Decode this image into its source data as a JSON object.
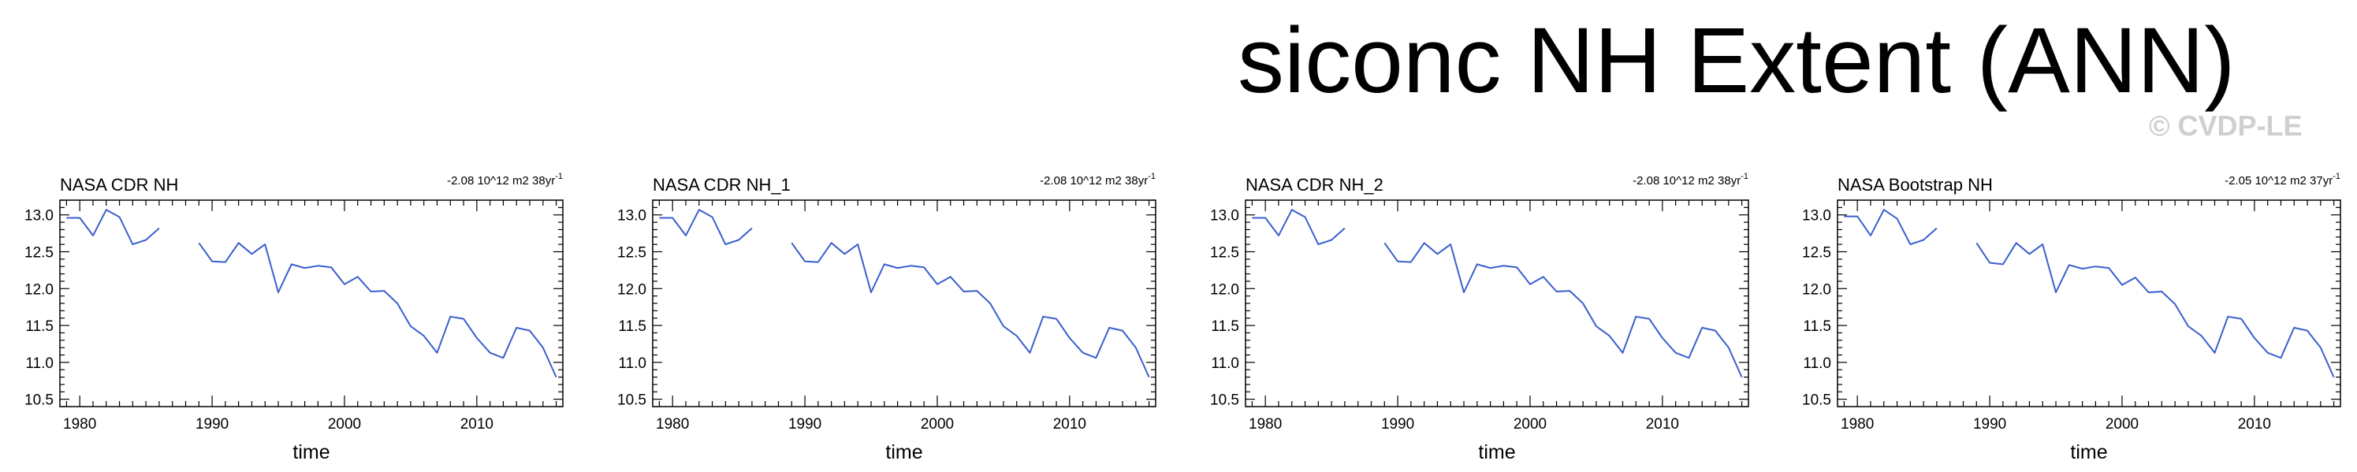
{
  "main_title": "siconc NH Extent (ANN)",
  "watermark": "© CVDP-LE",
  "chart_data": [
    {
      "type": "line",
      "title": "NASA CDR NH",
      "trend_label": "-2.08 10^12 m2 38yr",
      "trend_superscript": "-1",
      "xlabel": "time",
      "ylabel": "",
      "xlim": [
        1978.5,
        2016.5
      ],
      "ylim": [
        10.4,
        13.2
      ],
      "xticks": [
        1980,
        1990,
        2000,
        2010
      ],
      "yticks": [
        "13.0",
        "12.5",
        "12.0",
        "11.5",
        "11.0",
        "10.5"
      ],
      "line_color": "#3a5fcd",
      "x": [
        1979,
        1980,
        1981,
        1982,
        1983,
        1984,
        1985,
        1986,
        1987,
        1988,
        1989,
        1990,
        1991,
        1992,
        1993,
        1994,
        1995,
        1996,
        1997,
        1998,
        1999,
        2000,
        2001,
        2002,
        2003,
        2004,
        2005,
        2006,
        2007,
        2008,
        2009,
        2010,
        2011,
        2012,
        2013,
        2014,
        2015,
        2016
      ],
      "y": [
        12.96,
        12.96,
        12.72,
        13.07,
        12.97,
        12.6,
        12.66,
        12.82,
        null,
        null,
        12.62,
        12.37,
        12.36,
        12.62,
        12.47,
        12.6,
        11.95,
        12.33,
        12.28,
        12.31,
        12.29,
        12.06,
        12.16,
        11.96,
        11.97,
        11.8,
        11.49,
        11.36,
        11.13,
        11.62,
        11.59,
        11.33,
        11.13,
        11.06,
        11.47,
        11.43,
        11.2,
        10.8
      ]
    },
    {
      "type": "line",
      "title": "NASA CDR NH_1",
      "trend_label": "-2.08 10^12 m2 38yr",
      "trend_superscript": "-1",
      "xlabel": "time",
      "ylabel": "",
      "xlim": [
        1978.5,
        2016.5
      ],
      "ylim": [
        10.4,
        13.2
      ],
      "xticks": [
        1980,
        1990,
        2000,
        2010
      ],
      "yticks": [
        "13.0",
        "12.5",
        "12.0",
        "11.5",
        "11.0",
        "10.5"
      ],
      "line_color": "#3a5fcd",
      "x": [
        1979,
        1980,
        1981,
        1982,
        1983,
        1984,
        1985,
        1986,
        1987,
        1988,
        1989,
        1990,
        1991,
        1992,
        1993,
        1994,
        1995,
        1996,
        1997,
        1998,
        1999,
        2000,
        2001,
        2002,
        2003,
        2004,
        2005,
        2006,
        2007,
        2008,
        2009,
        2010,
        2011,
        2012,
        2013,
        2014,
        2015,
        2016
      ],
      "y": [
        12.96,
        12.96,
        12.72,
        13.07,
        12.97,
        12.6,
        12.66,
        12.82,
        null,
        null,
        12.62,
        12.37,
        12.36,
        12.62,
        12.47,
        12.6,
        11.95,
        12.33,
        12.28,
        12.31,
        12.29,
        12.06,
        12.16,
        11.96,
        11.97,
        11.8,
        11.49,
        11.36,
        11.13,
        11.62,
        11.59,
        11.33,
        11.13,
        11.06,
        11.47,
        11.43,
        11.2,
        10.8
      ]
    },
    {
      "type": "line",
      "title": "NASA CDR NH_2",
      "trend_label": "-2.08 10^12 m2 38yr",
      "trend_superscript": "-1",
      "xlabel": "time",
      "ylabel": "",
      "xlim": [
        1978.5,
        2016.5
      ],
      "ylim": [
        10.4,
        13.2
      ],
      "xticks": [
        1980,
        1990,
        2000,
        2010
      ],
      "yticks": [
        "13.0",
        "12.5",
        "12.0",
        "11.5",
        "11.0",
        "10.5"
      ],
      "line_color": "#3a5fcd",
      "x": [
        1979,
        1980,
        1981,
        1982,
        1983,
        1984,
        1985,
        1986,
        1987,
        1988,
        1989,
        1990,
        1991,
        1992,
        1993,
        1994,
        1995,
        1996,
        1997,
        1998,
        1999,
        2000,
        2001,
        2002,
        2003,
        2004,
        2005,
        2006,
        2007,
        2008,
        2009,
        2010,
        2011,
        2012,
        2013,
        2014,
        2015,
        2016
      ],
      "y": [
        12.96,
        12.96,
        12.72,
        13.07,
        12.97,
        12.6,
        12.66,
        12.82,
        null,
        null,
        12.62,
        12.37,
        12.36,
        12.62,
        12.47,
        12.6,
        11.95,
        12.33,
        12.28,
        12.31,
        12.29,
        12.06,
        12.16,
        11.96,
        11.97,
        11.8,
        11.49,
        11.36,
        11.13,
        11.62,
        11.59,
        11.33,
        11.13,
        11.06,
        11.47,
        11.43,
        11.2,
        10.8
      ]
    },
    {
      "type": "line",
      "title": "NASA Bootstrap NH",
      "trend_label": "-2.05 10^12 m2 37yr",
      "trend_superscript": "-1",
      "xlabel": "time",
      "ylabel": "",
      "xlim": [
        1978.5,
        2016.5
      ],
      "ylim": [
        10.4,
        13.2
      ],
      "xticks": [
        1980,
        1990,
        2000,
        2010
      ],
      "yticks": [
        "13.0",
        "12.5",
        "12.0",
        "11.5",
        "11.0",
        "10.5"
      ],
      "line_color": "#3a5fcd",
      "x": [
        1979,
        1980,
        1981,
        1982,
        1983,
        1984,
        1985,
        1986,
        1987,
        1988,
        1989,
        1990,
        1991,
        1992,
        1993,
        1994,
        1995,
        1996,
        1997,
        1998,
        1999,
        2000,
        2001,
        2002,
        2003,
        2004,
        2005,
        2006,
        2007,
        2008,
        2009,
        2010,
        2011,
        2012,
        2013,
        2014,
        2015,
        2016
      ],
      "y": [
        12.98,
        12.98,
        12.72,
        13.07,
        12.95,
        12.6,
        12.66,
        12.82,
        null,
        null,
        12.62,
        12.35,
        12.33,
        12.62,
        12.47,
        12.6,
        11.95,
        12.32,
        12.27,
        12.3,
        12.28,
        12.05,
        12.15,
        11.95,
        11.96,
        11.79,
        11.49,
        11.36,
        11.13,
        11.62,
        11.59,
        11.33,
        11.13,
        11.06,
        11.47,
        11.43,
        11.2,
        10.8
      ]
    }
  ]
}
